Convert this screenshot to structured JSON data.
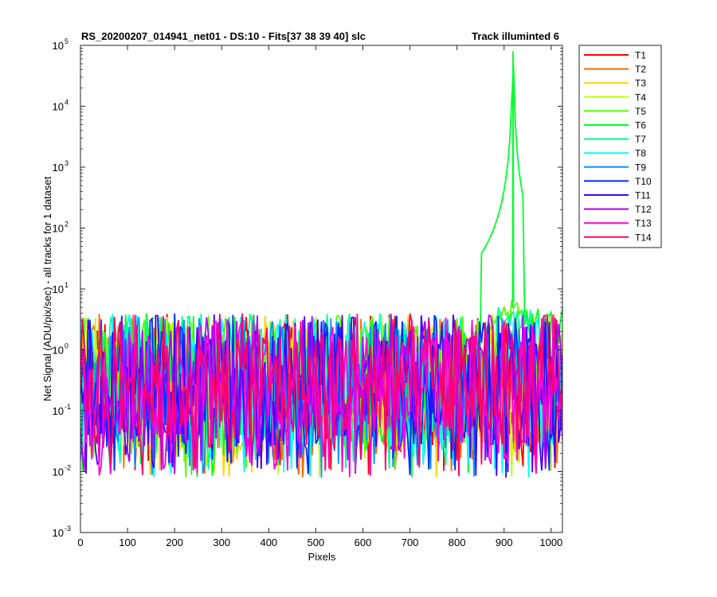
{
  "chart_data": {
    "type": "line",
    "title_left": "RS_20200207_014941_net01 - DS:10 - Fits[37  38  39  40]   slc",
    "title_right": "Track illuminted 6",
    "xlabel": "Pixels",
    "ylabel": "Net Signal (ADU/pix/sec) - all tracks for 1 dataset",
    "xlim": [
      0,
      1024
    ],
    "ylim": [
      0.001,
      100000
    ],
    "yscale": "log",
    "xticks": [
      0,
      100,
      200,
      300,
      400,
      500,
      600,
      700,
      800,
      900,
      1000
    ],
    "yticks": [
      {
        "base": "10",
        "exp": "-3",
        "value": 0.001
      },
      {
        "base": "10",
        "exp": "-2",
        "value": 0.01
      },
      {
        "base": "10",
        "exp": "-1",
        "value": 0.1
      },
      {
        "base": "10",
        "exp": "0",
        "value": 1
      },
      {
        "base": "10",
        "exp": "1",
        "value": 10
      },
      {
        "base": "10",
        "exp": "2",
        "value": 100
      },
      {
        "base": "10",
        "exp": "3",
        "value": 1000
      },
      {
        "base": "10",
        "exp": "4",
        "value": 10000
      },
      {
        "base": "10",
        "exp": "5",
        "value": 100000
      }
    ],
    "grid": false,
    "legend_position": "outside-top-right",
    "illuminated_track": "T6",
    "peak": {
      "x": 919,
      "y": 80000
    },
    "series": [
      {
        "name": "T1",
        "color": "#ff0000"
      },
      {
        "name": "T2",
        "color": "#ff6a00"
      },
      {
        "name": "T3",
        "color": "#ffd500"
      },
      {
        "name": "T4",
        "color": "#bfff00"
      },
      {
        "name": "T5",
        "color": "#55ff00"
      },
      {
        "name": "T6",
        "color": "#00ff2a"
      },
      {
        "name": "T7",
        "color": "#00ff95"
      },
      {
        "name": "T8",
        "color": "#00ffff"
      },
      {
        "name": "T9",
        "color": "#0095ff"
      },
      {
        "name": "T10",
        "color": "#002aff"
      },
      {
        "name": "T11",
        "color": "#4000ff"
      },
      {
        "name": "T12",
        "color": "#aa00ff"
      },
      {
        "name": "T13",
        "color": "#ff00d5"
      },
      {
        "name": "T14",
        "color": "#ff0066"
      }
    ]
  }
}
